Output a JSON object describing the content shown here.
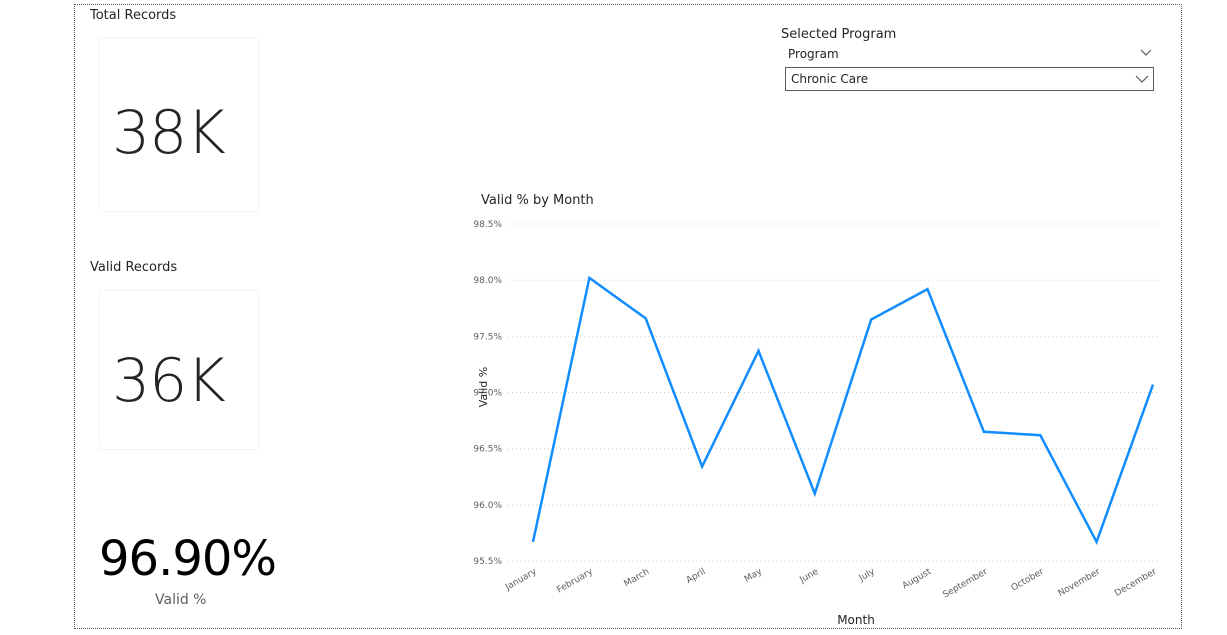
{
  "total_records": {
    "title": "Total Records",
    "value": "38K"
  },
  "valid_records": {
    "title": "Valid Records",
    "value": "36K"
  },
  "valid_pct": {
    "value": "96.90%",
    "label": "Valid %"
  },
  "slicer": {
    "title": "Selected Program",
    "field_label": "Program",
    "selected_value": "Chronic Care"
  },
  "colors": {
    "line": "#118DFF",
    "grid": "#d0d0d0",
    "text": "#252423",
    "axis_text": "#605e5c"
  },
  "chart_data": {
    "type": "line",
    "title": "Valid % by Month",
    "xlabel": "Month",
    "ylabel": "Valid %",
    "ylim": [
      95.5,
      98.5
    ],
    "yticks": [
      "95.5%",
      "96.0%",
      "96.5%",
      "97.0%",
      "97.5%",
      "98.0%",
      "98.5%"
    ],
    "grid": true,
    "categories": [
      "January",
      "February",
      "March",
      "April",
      "May",
      "June",
      "July",
      "August",
      "September",
      "October",
      "November",
      "December"
    ],
    "values": [
      95.67,
      98.02,
      97.66,
      96.34,
      97.37,
      96.1,
      97.65,
      97.92,
      96.65,
      96.62,
      95.67,
      97.07
    ]
  }
}
